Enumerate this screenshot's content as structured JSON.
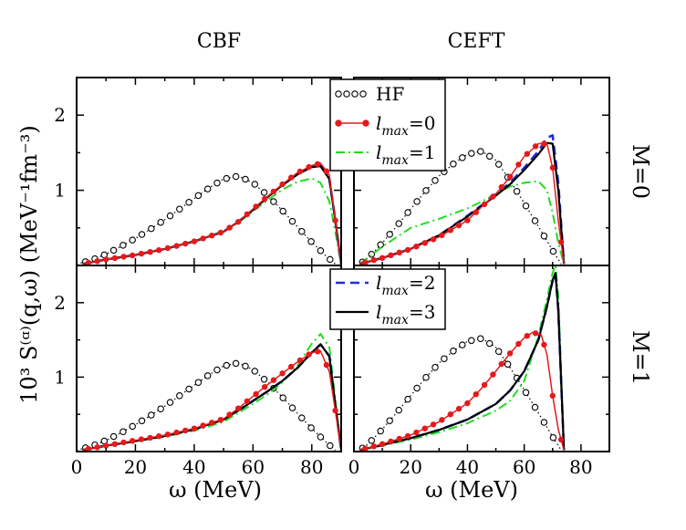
{
  "figure": {
    "col_titles": [
      "CBF",
      "CEFT"
    ],
    "row_labels": [
      "M=0",
      "M=1"
    ],
    "ylabel": "10³ S⁽ᵅ⁾(q,ω) (MeV⁻¹fm⁻³)",
    "xlabel": "ω (MeV)"
  },
  "legend": {
    "top": [
      {
        "label": "HF",
        "style": "dotted-circles",
        "color": "#000000"
      },
      {
        "label": "l_max=0",
        "style": "solid-dots",
        "color": "#e41a1c"
      },
      {
        "label": "l_max=1",
        "style": "dash-dot",
        "color": "#22dd22"
      }
    ],
    "bottom": [
      {
        "label": "l_max=2",
        "style": "dashed",
        "color": "#1f2fd6"
      },
      {
        "label": "l_max=3",
        "style": "solid",
        "color": "#000000"
      }
    ]
  },
  "colors": {
    "HF": "#000000",
    "l0": "#e41a1c",
    "l1": "#22dd22",
    "l2": "#1f2fd6",
    "l3": "#000000"
  },
  "chart_data": [
    {
      "type": "line",
      "panel": "CBF M=0",
      "xlim": [
        0,
        90
      ],
      "ylim": [
        0,
        2.5
      ],
      "xticks": [
        0,
        20,
        40,
        60,
        80
      ],
      "yticks": [
        1,
        2
      ],
      "series": [
        {
          "name": "HF",
          "x": [
            0,
            5,
            10,
            15,
            20,
            25,
            30,
            35,
            40,
            45,
            50,
            55,
            60,
            65,
            70,
            75,
            80,
            85,
            88
          ],
          "y": [
            0.02,
            0.07,
            0.15,
            0.25,
            0.36,
            0.48,
            0.61,
            0.75,
            0.89,
            1.03,
            1.15,
            1.19,
            1.1,
            0.93,
            0.73,
            0.52,
            0.31,
            0.12,
            0.02
          ]
        },
        {
          "name": "l_max=0",
          "x": [
            2,
            10,
            20,
            30,
            40,
            50,
            55,
            60,
            65,
            70,
            75,
            80,
            83,
            86,
            88,
            90
          ],
          "y": [
            0.02,
            0.08,
            0.14,
            0.22,
            0.32,
            0.45,
            0.58,
            0.75,
            0.92,
            1.08,
            1.23,
            1.33,
            1.36,
            1.2,
            0.6,
            0.02
          ]
        },
        {
          "name": "l_max=1",
          "x": [
            2,
            10,
            20,
            30,
            40,
            50,
            55,
            60,
            65,
            70,
            75,
            80,
            83,
            86,
            88,
            90
          ],
          "y": [
            0.02,
            0.08,
            0.14,
            0.22,
            0.32,
            0.45,
            0.57,
            0.72,
            0.87,
            1.01,
            1.11,
            1.16,
            1.1,
            0.85,
            0.45,
            0.02
          ]
        },
        {
          "name": "l_max=2",
          "x": [
            2,
            10,
            20,
            30,
            40,
            50,
            55,
            60,
            65,
            70,
            75,
            80,
            83,
            86,
            88,
            90
          ],
          "y": [
            0.02,
            0.08,
            0.14,
            0.22,
            0.32,
            0.45,
            0.58,
            0.74,
            0.91,
            1.07,
            1.21,
            1.32,
            1.33,
            1.15,
            0.6,
            0.02
          ]
        },
        {
          "name": "l_max=3",
          "x": [
            2,
            10,
            20,
            30,
            40,
            50,
            55,
            60,
            65,
            70,
            75,
            80,
            83,
            86,
            88,
            90
          ],
          "y": [
            0.02,
            0.08,
            0.14,
            0.22,
            0.32,
            0.45,
            0.58,
            0.74,
            0.91,
            1.07,
            1.21,
            1.31,
            1.32,
            1.15,
            0.6,
            0.02
          ]
        }
      ]
    },
    {
      "type": "line",
      "panel": "CEFT M=0",
      "xlim": [
        0,
        90
      ],
      "ylim": [
        0,
        2.5
      ],
      "xticks": [
        0,
        20,
        40,
        60,
        80
      ],
      "yticks": [
        1,
        2
      ],
      "series": [
        {
          "name": "HF",
          "x": [
            2,
            5,
            10,
            15,
            20,
            25,
            30,
            35,
            40,
            45,
            50,
            55,
            60,
            65,
            70,
            73
          ],
          "y": [
            0.02,
            0.1,
            0.3,
            0.52,
            0.75,
            0.98,
            1.19,
            1.35,
            1.48,
            1.52,
            1.4,
            1.13,
            0.83,
            0.52,
            0.2,
            0.02
          ]
        },
        {
          "name": "l_max=0",
          "x": [
            2,
            10,
            20,
            30,
            40,
            45,
            50,
            55,
            60,
            65,
            68,
            70,
            72,
            74
          ],
          "y": [
            0.02,
            0.1,
            0.22,
            0.38,
            0.6,
            0.78,
            0.95,
            1.18,
            1.45,
            1.62,
            1.62,
            1.3,
            0.6,
            0.02
          ]
        },
        {
          "name": "l_max=1",
          "x": [
            2,
            10,
            20,
            30,
            40,
            45,
            50,
            55,
            60,
            65,
            68,
            70,
            72,
            74
          ],
          "y": [
            0.02,
            0.25,
            0.5,
            0.62,
            0.76,
            0.85,
            0.95,
            1.05,
            1.1,
            1.12,
            1.0,
            0.7,
            0.3,
            0.02
          ]
        },
        {
          "name": "l_max=2",
          "x": [
            2,
            10,
            20,
            30,
            40,
            45,
            50,
            55,
            60,
            65,
            68,
            70,
            72,
            74
          ],
          "y": [
            0.02,
            0.1,
            0.22,
            0.4,
            0.66,
            0.8,
            0.95,
            1.1,
            1.3,
            1.52,
            1.7,
            1.73,
            1.1,
            0.02
          ]
        },
        {
          "name": "l_max=3",
          "x": [
            2,
            10,
            20,
            30,
            40,
            45,
            50,
            55,
            60,
            65,
            68,
            70,
            72,
            74
          ],
          "y": [
            0.02,
            0.1,
            0.22,
            0.4,
            0.65,
            0.79,
            0.93,
            1.08,
            1.27,
            1.48,
            1.63,
            1.62,
            1.0,
            0.02
          ]
        }
      ]
    },
    {
      "type": "line",
      "panel": "CBF M=1",
      "xlim": [
        0,
        90
      ],
      "ylim": [
        0,
        2.5
      ],
      "xticks": [
        0,
        20,
        40,
        60,
        80
      ],
      "yticks": [
        1,
        2
      ],
      "series": [
        {
          "name": "HF",
          "x": [
            0,
            5,
            10,
            15,
            20,
            25,
            30,
            35,
            40,
            45,
            50,
            55,
            60,
            65,
            70,
            75,
            80,
            85,
            88
          ],
          "y": [
            0.02,
            0.07,
            0.15,
            0.25,
            0.36,
            0.48,
            0.61,
            0.75,
            0.89,
            1.03,
            1.15,
            1.19,
            1.1,
            0.93,
            0.73,
            0.52,
            0.31,
            0.12,
            0.02
          ]
        },
        {
          "name": "l_max=0",
          "x": [
            2,
            10,
            20,
            30,
            40,
            50,
            55,
            60,
            65,
            70,
            75,
            80,
            83,
            86,
            88,
            90
          ],
          "y": [
            0.02,
            0.08,
            0.15,
            0.22,
            0.31,
            0.44,
            0.58,
            0.74,
            0.9,
            1.05,
            1.2,
            1.33,
            1.35,
            1.07,
            0.55,
            0.02
          ]
        },
        {
          "name": "l_max=1",
          "x": [
            2,
            10,
            20,
            30,
            40,
            50,
            55,
            60,
            65,
            70,
            75,
            80,
            83,
            86,
            88,
            90
          ],
          "y": [
            0.02,
            0.08,
            0.14,
            0.2,
            0.28,
            0.4,
            0.52,
            0.64,
            0.77,
            0.93,
            1.15,
            1.45,
            1.58,
            1.4,
            0.7,
            0.02
          ]
        },
        {
          "name": "l_max=2",
          "x": [
            2,
            10,
            20,
            30,
            40,
            50,
            55,
            60,
            65,
            70,
            75,
            80,
            83,
            86,
            88,
            90
          ],
          "y": [
            0.02,
            0.08,
            0.14,
            0.21,
            0.3,
            0.43,
            0.55,
            0.68,
            0.81,
            0.95,
            1.12,
            1.33,
            1.44,
            1.28,
            0.62,
            0.02
          ]
        },
        {
          "name": "l_max=3",
          "x": [
            2,
            10,
            20,
            30,
            40,
            50,
            55,
            60,
            65,
            70,
            75,
            80,
            83,
            86,
            88,
            90
          ],
          "y": [
            0.02,
            0.08,
            0.14,
            0.21,
            0.3,
            0.43,
            0.55,
            0.68,
            0.81,
            0.95,
            1.12,
            1.33,
            1.44,
            1.28,
            0.62,
            0.02
          ]
        }
      ]
    },
    {
      "type": "line",
      "panel": "CEFT M=1",
      "xlim": [
        0,
        90
      ],
      "ylim": [
        0,
        2.5
      ],
      "xticks": [
        0,
        20,
        40,
        60,
        80
      ],
      "yticks": [
        1,
        2
      ],
      "series": [
        {
          "name": "HF",
          "x": [
            2,
            5,
            10,
            15,
            20,
            25,
            30,
            35,
            40,
            45,
            50,
            55,
            60,
            65,
            70,
            73
          ],
          "y": [
            0.02,
            0.1,
            0.3,
            0.52,
            0.75,
            0.98,
            1.19,
            1.35,
            1.48,
            1.52,
            1.4,
            1.13,
            0.83,
            0.52,
            0.2,
            0.02
          ]
        },
        {
          "name": "l_max=0",
          "x": [
            2,
            10,
            20,
            30,
            40,
            45,
            50,
            55,
            60,
            63,
            66,
            68,
            70,
            72,
            74
          ],
          "y": [
            0.02,
            0.1,
            0.22,
            0.4,
            0.65,
            0.85,
            1.08,
            1.32,
            1.53,
            1.6,
            1.57,
            1.3,
            0.75,
            0.3,
            0.02
          ]
        },
        {
          "name": "l_max=1",
          "x": [
            2,
            10,
            20,
            30,
            40,
            50,
            55,
            60,
            65,
            68,
            70,
            71,
            72,
            74
          ],
          "y": [
            0.02,
            0.08,
            0.16,
            0.26,
            0.38,
            0.55,
            0.68,
            0.95,
            1.55,
            2.05,
            2.4,
            2.5,
            2.1,
            0.02
          ]
        },
        {
          "name": "l_max=2",
          "x": [
            2,
            10,
            20,
            30,
            40,
            50,
            55,
            60,
            65,
            68,
            70,
            71,
            72,
            74
          ],
          "y": [
            0.02,
            0.09,
            0.18,
            0.29,
            0.43,
            0.64,
            0.82,
            1.08,
            1.5,
            1.95,
            2.3,
            2.4,
            1.9,
            0.02
          ]
        },
        {
          "name": "l_max=3",
          "x": [
            2,
            10,
            20,
            30,
            40,
            50,
            55,
            60,
            65,
            68,
            70,
            71,
            72,
            74
          ],
          "y": [
            0.02,
            0.09,
            0.18,
            0.29,
            0.43,
            0.64,
            0.82,
            1.08,
            1.5,
            1.95,
            2.3,
            2.4,
            1.9,
            0.02
          ]
        }
      ]
    }
  ]
}
